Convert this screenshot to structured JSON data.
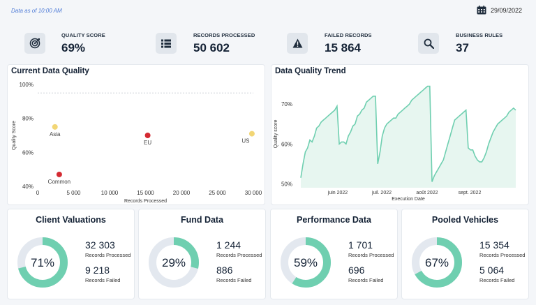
{
  "header": {
    "data_as_of": "Data as of 10:00 AM",
    "date": "29/09/2022",
    "calendar_icon": "calendar-icon"
  },
  "kpis": [
    {
      "label": "QUALITY SCORE",
      "value": "69%",
      "icon": "target-icon"
    },
    {
      "label": "RECORDS PROCESSED",
      "value": "50 602",
      "icon": "list-icon"
    },
    {
      "label": "FAILED RECORDS",
      "value": "15 864",
      "icon": "warning-icon"
    },
    {
      "label": "BUSINESS RULES",
      "value": "37",
      "icon": "search-icon"
    }
  ],
  "current_quality": {
    "title": "Current Data Quality",
    "chart_data": {
      "type": "scatter",
      "xlabel": "Records Processed",
      "ylabel": "Quality Score",
      "xlim": [
        0,
        30000
      ],
      "ylim": [
        40,
        100
      ],
      "x_ticks": [
        "0",
        "5 000",
        "10 000",
        "15 000",
        "20 000",
        "25 000",
        "30 000"
      ],
      "y_ticks": [
        "100%",
        "80%",
        "60%",
        "40%"
      ],
      "points": [
        {
          "label": "Asia",
          "x": 2400,
          "y": 75,
          "color": "#f2d675"
        },
        {
          "label": "EU",
          "x": 15300,
          "y": 70,
          "color": "#d42a32"
        },
        {
          "label": "US",
          "x": 29800,
          "y": 71,
          "color": "#f2d675"
        },
        {
          "label": "Common",
          "x": 3000,
          "y": 47,
          "color": "#d42a32"
        }
      ],
      "target_line": 95
    }
  },
  "trend": {
    "title": "Data Quality Trend",
    "chart_data": {
      "type": "area",
      "xlabel": "Execution Date",
      "ylabel": "Quality score",
      "ylim": [
        49,
        76
      ],
      "y_ticks": [
        "70%",
        "60%",
        "50%"
      ],
      "x_ticks": [
        "juin 2022",
        "juil. 2022",
        "août 2022",
        "sept. 2022"
      ],
      "color": "#6fcfb0",
      "values": [
        51.5,
        55,
        58,
        59,
        61,
        60.5,
        62,
        64,
        64.5,
        65.5,
        66,
        66.5,
        67,
        67.5,
        68,
        68.5,
        69.5,
        60,
        60.5,
        60.5,
        60,
        62,
        63,
        64.5,
        65,
        67,
        67.5,
        68.5,
        69,
        70.5,
        71,
        71.5,
        72,
        72,
        55,
        58,
        62,
        64,
        65,
        65.5,
        66,
        66.5,
        66.5,
        67.5,
        68,
        68.5,
        69,
        69.5,
        70,
        71,
        71.5,
        72,
        72.5,
        73,
        73.5,
        74,
        74.5,
        74.5,
        50.5,
        52,
        53,
        54,
        55,
        56,
        58,
        60,
        62,
        64,
        66,
        66.5,
        67,
        67.5,
        68,
        68.5,
        59,
        58.5,
        58.5,
        57,
        56,
        55.5,
        55.5,
        56.5,
        58,
        60,
        61.5,
        63,
        64,
        65,
        65.5,
        66,
        66.5,
        67,
        68,
        68.5,
        69,
        68.5
      ]
    }
  },
  "cards": [
    {
      "title": "Client Valuations",
      "percent": 71,
      "percent_label": "71%",
      "processed": "32 303",
      "processed_label": "Records Processed",
      "failed": "9 218",
      "failed_label": "Records Failed"
    },
    {
      "title": "Fund Data",
      "percent": 29,
      "percent_label": "29%",
      "processed": "1 244",
      "processed_label": "Records Processed",
      "failed": "886",
      "failed_label": "Records Failed"
    },
    {
      "title": "Performance Data",
      "percent": 59,
      "percent_label": "59%",
      "processed": "1 701",
      "processed_label": "Records Processed",
      "failed": "696",
      "failed_label": "Records Failed"
    },
    {
      "title": "Pooled Vehicles",
      "percent": 67,
      "percent_label": "67%",
      "processed": "15 354",
      "processed_label": "Records Processed",
      "failed": "5 064",
      "failed_label": "Records Failed"
    }
  ],
  "colors": {
    "accent": "#6fcfb0",
    "track": "#e3e8ef",
    "red": "#d42a32",
    "yellow": "#f2d675"
  }
}
